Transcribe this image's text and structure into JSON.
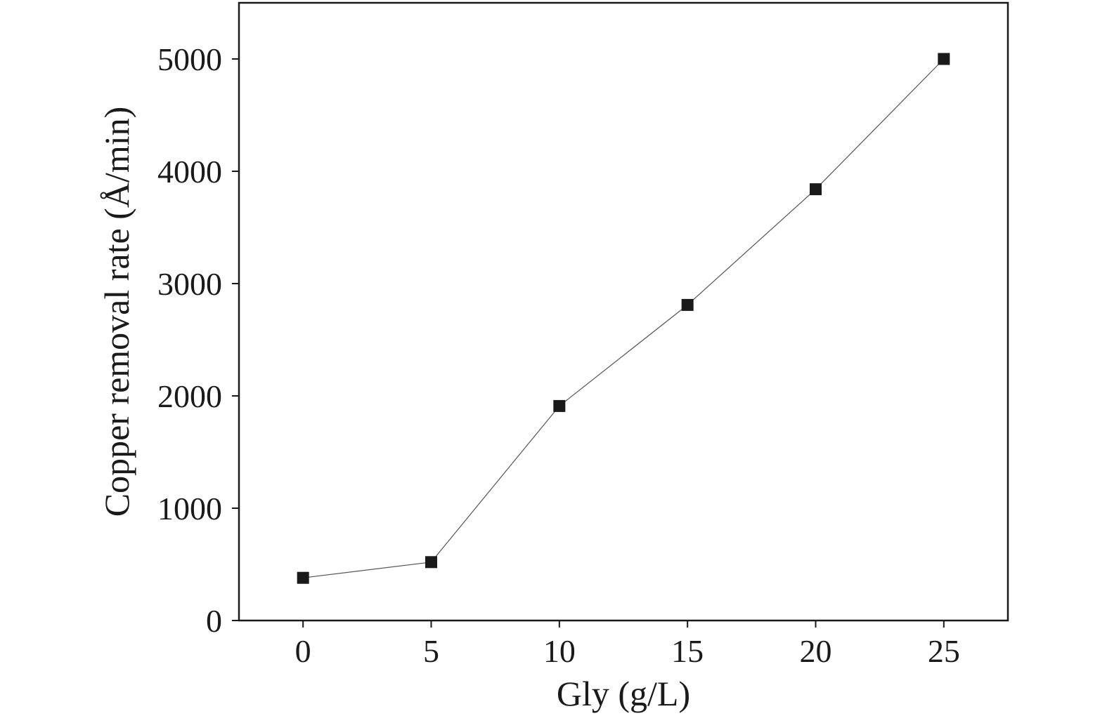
{
  "chart_data": {
    "type": "line",
    "title": "",
    "xlabel": "Gly (g/L)",
    "ylabel": "Copper removal rate (Å/min)",
    "xlim": [
      -2.5,
      27.5
    ],
    "ylim": [
      0,
      5500
    ],
    "xticks": [
      0,
      5,
      10,
      15,
      20,
      25
    ],
    "yticks": [
      0,
      1000,
      2000,
      3000,
      4000,
      5000
    ],
    "grid": false,
    "legend": "none",
    "series": [
      {
        "marker": "square",
        "color": "#1a1a1a",
        "x": [
          0,
          5,
          10,
          15,
          20,
          25
        ],
        "y": [
          380,
          520,
          1910,
          2810,
          3840,
          5000
        ]
      }
    ]
  }
}
